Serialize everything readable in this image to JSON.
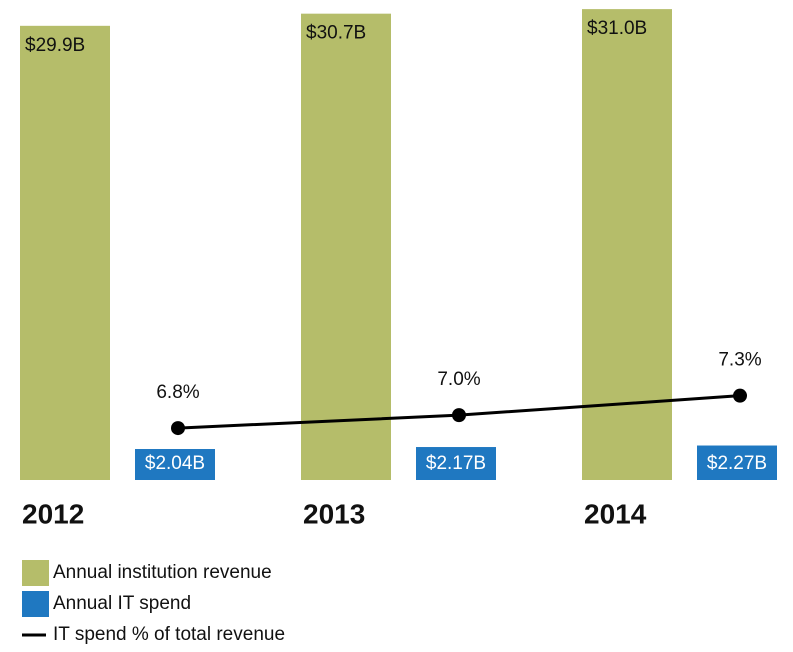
{
  "chart_data": {
    "type": "bar",
    "categories": [
      "2012",
      "2013",
      "2014"
    ],
    "series": [
      {
        "name": "Annual institution revenue",
        "color": "#b5bd6a",
        "values": [
          29.9,
          30.7,
          31.0
        ],
        "value_labels": [
          "$29.9B",
          "$30.7B",
          "$31.0B"
        ]
      },
      {
        "name": "Annual IT spend",
        "color": "#1f78c1",
        "values": [
          2.04,
          2.17,
          2.27
        ],
        "value_labels": [
          "$2.04B",
          "$2.17B",
          "$2.27B"
        ]
      },
      {
        "name": "IT spend % of total revenue",
        "type": "line",
        "axis": "y2",
        "color": "#000000",
        "values": [
          6.8,
          7.0,
          7.3
        ],
        "value_labels": [
          "6.8%",
          "7.0%",
          "7.3%"
        ]
      }
    ],
    "ylim": [
      0,
      31.6
    ],
    "y2lim": [
      6,
      13.4
    ],
    "legend": "bottom-left"
  }
}
